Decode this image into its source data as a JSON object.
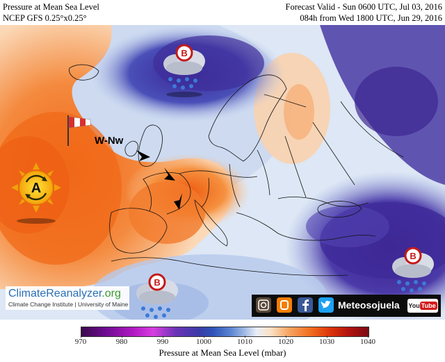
{
  "header": {
    "title_left_1": "Pressure at Mean Sea Level",
    "title_left_2": "NCEP GFS 0.25°x0.25°",
    "title_right_1": "Forecast Valid - Sun 0600 UTC, Jul 03, 2016",
    "title_right_2": "084h from Wed 1800 UTC, Jun 29, 2016"
  },
  "map": {
    "wind_label": "W-Nw",
    "anticyclone_letter": "A",
    "low_letter": "B",
    "colors": {
      "sea_blue": "#dfe8f6",
      "high_orange": "#f26a18",
      "low_purple": "#3d2fa0"
    }
  },
  "colorbar": {
    "title": "Pressure at Mean Sea Level (mbar)",
    "ticks": [
      "970",
      "980",
      "990",
      "1000",
      "1010",
      "1020",
      "1030",
      "1040"
    ],
    "min": 970,
    "max": 1040
  },
  "logo": {
    "name_a": "ClimateReanalyzer",
    "name_b": ".org",
    "subtitle": "Climate Change Institute | University of Maine"
  },
  "social": {
    "brand": "Meteosojuela",
    "youtube_a": "You",
    "youtube_b": "Tube",
    "icons": [
      "instagram-icon",
      "blogger-icon",
      "facebook-icon",
      "twitter-icon"
    ]
  }
}
